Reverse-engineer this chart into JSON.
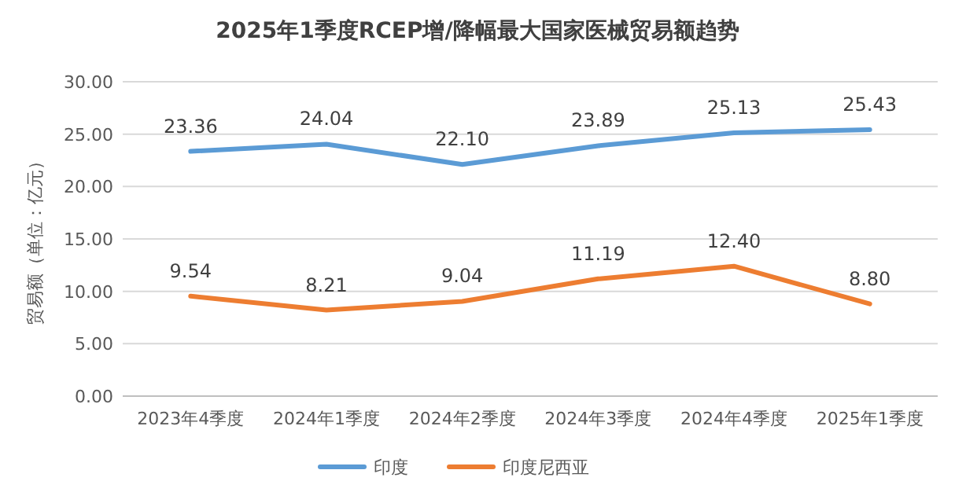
{
  "chart_data": {
    "type": "line",
    "title": "2025年1季度RCEP增/降幅最大国家医械贸易额趋势",
    "ylabel": "贸易额（单位：亿元）",
    "categories": [
      "2023年4季度",
      "2024年1季度",
      "2024年2季度",
      "2024年3季度",
      "2024年4季度",
      "2025年1季度"
    ],
    "series": [
      {
        "name": "印度",
        "color": "#5b9bd5",
        "values": [
          23.36,
          24.04,
          22.1,
          23.89,
          25.13,
          25.43
        ],
        "value_labels": [
          "23.36",
          "24.04",
          "22.10",
          "23.89",
          "25.13",
          "25.43"
        ]
      },
      {
        "name": "印度尼西亚",
        "color": "#ed7d31",
        "values": [
          9.54,
          8.21,
          9.04,
          11.19,
          12.4,
          8.8
        ],
        "value_labels": [
          "9.54",
          "8.21",
          "9.04",
          "11.19",
          "12.40",
          "8.80"
        ]
      }
    ],
    "ylim": [
      0,
      30
    ],
    "yticks": [
      {
        "value": 0,
        "label": "0.00"
      },
      {
        "value": 5,
        "label": "5.00"
      },
      {
        "value": 10,
        "label": "10.00"
      },
      {
        "value": 15,
        "label": "15.00"
      },
      {
        "value": 20,
        "label": "20.00"
      },
      {
        "value": 25,
        "label": "25.00"
      },
      {
        "value": 30,
        "label": "30.00"
      }
    ],
    "grid": "y",
    "legend": "bottom",
    "marker": "none",
    "line_style": "solid"
  }
}
